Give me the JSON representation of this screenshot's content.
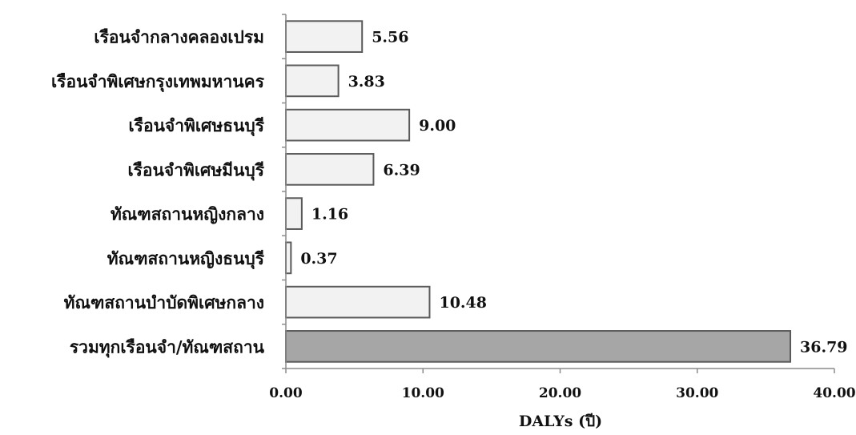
{
  "chart_data": {
    "type": "bar",
    "orientation": "horizontal",
    "categories": [
      "เรือนจำกลางคลองเปรม",
      "เรือนจำพิเศษกรุงเทพมหานคร",
      "เรือนจำพิเศษธนบุรี",
      "เรือนจำพิเศษมีนบุรี",
      "ทัณฑสถานหญิงกลาง",
      "ทัณฑสถานหญิงธนบุรี",
      "ทัณฑสถานบำบัดพิเศษกลาง",
      "รวมทุกเรือนจำ/ทัณฑสถาน"
    ],
    "values": [
      5.56,
      3.83,
      9.0,
      6.39,
      1.16,
      0.37,
      10.48,
      36.79
    ],
    "value_labels": [
      "5.56",
      "3.83",
      "9.00",
      "6.39",
      "1.16",
      "0.37",
      "10.48",
      "36.79"
    ],
    "xlabel": "DALYs (ปี)",
    "xlim": [
      0,
      40
    ],
    "xticks": [
      0,
      10,
      20,
      30,
      40
    ],
    "xtick_labels": [
      "0.00",
      "10.00",
      "20.00",
      "30.00",
      "40.00"
    ],
    "grid": false,
    "colors": {
      "bar_fill": "#f2f2f2",
      "bar_fill_total": "#a6a6a6",
      "bar_stroke": "#5a5a5a",
      "axis": "#8c8c8c"
    }
  }
}
